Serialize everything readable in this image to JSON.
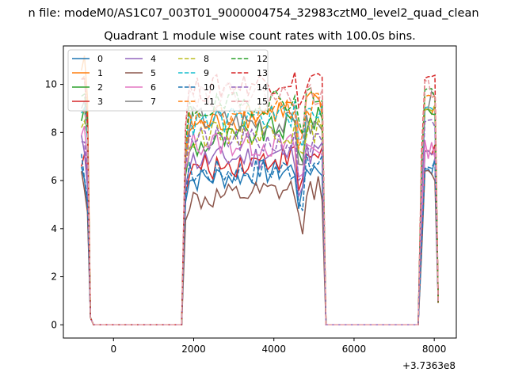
{
  "chart_data": {
    "type": "line",
    "suptitle": "n file: modeM0/AS1C07_003T01_9000004754_32983cztM0_level2_quad_clean",
    "title": "Quadrant 1 module wise count rates with 100.0s bins.",
    "xlabel": "",
    "ylabel": "",
    "x_offset_label": "+3.7363e8",
    "xlim": [
      -1250,
      8550
    ],
    "ylim": [
      -0.55,
      11.6
    ],
    "xticks": [
      0,
      2000,
      4000,
      6000,
      8000
    ],
    "xtick_labels": [
      "0",
      "2000",
      "4000",
      "6000",
      "8000"
    ],
    "yticks": [
      0,
      2,
      4,
      6,
      8,
      10
    ],
    "ytick_labels": [
      "0",
      "2",
      "4",
      "6",
      "8",
      "10"
    ],
    "grid": false,
    "legend": {
      "location": "upper-left",
      "columns": 4
    },
    "segments": [
      {
        "x_start": -800,
        "x_end": -500,
        "n": 4
      },
      {
        "x_start": -500,
        "x_end": 1700,
        "n": 23
      },
      {
        "x_start": 1700,
        "x_end": 5300,
        "n": 37
      },
      {
        "x_start": 5300,
        "x_end": 7600,
        "n": 24
      },
      {
        "x_start": 7600,
        "x_end": 8100,
        "n": 6
      }
    ],
    "series": [
      {
        "name": "0",
        "color": "#1f77b4",
        "dash": "solid",
        "levels": [
          6.5,
          6.0,
          6.6,
          6.6
        ]
      },
      {
        "name": "1",
        "color": "#ff7f0e",
        "dash": "solid",
        "levels": [
          10.7,
          8.1,
          9.3,
          9.0
        ]
      },
      {
        "name": "2",
        "color": "#2ca02c",
        "dash": "solid",
        "levels": [
          8.8,
          7.3,
          8.6,
          8.9
        ]
      },
      {
        "name": "3",
        "color": "#d62728",
        "dash": "solid",
        "levels": [
          7.1,
          6.4,
          7.2,
          7.1
        ]
      },
      {
        "name": "4",
        "color": "#9467bd",
        "dash": "solid",
        "levels": [
          7.4,
          6.8,
          7.2,
          7.0
        ]
      },
      {
        "name": "5",
        "color": "#8c564b",
        "dash": "solid",
        "levels": [
          6.1,
          5.1,
          5.7,
          6.1
        ]
      },
      {
        "name": "6",
        "color": "#e377c2",
        "dash": "solid",
        "levels": [
          7.8,
          7.6,
          7.4,
          7.3
        ]
      },
      {
        "name": "7",
        "color": "#7f7f7f",
        "dash": "solid",
        "levels": [
          9.1,
          8.6,
          8.2,
          9.3
        ]
      },
      {
        "name": "8",
        "color": "#bcbd22",
        "dash": "dashed",
        "levels": [
          8.5,
          7.9,
          8.1,
          9.2
        ]
      },
      {
        "name": "9",
        "color": "#17becf",
        "dash": "dashed",
        "levels": [
          9.3,
          8.3,
          8.9,
          9.2
        ]
      },
      {
        "name": "10",
        "color": "#1f77b4",
        "dash": "dashed",
        "levels": [
          6.6,
          6.3,
          6.6,
          6.6
        ]
      },
      {
        "name": "11",
        "color": "#ff7f0e",
        "dash": "dashed",
        "levels": [
          9.9,
          8.4,
          9.2,
          9.5
        ]
      },
      {
        "name": "12",
        "color": "#2ca02c",
        "dash": "dashed",
        "levels": [
          9.4,
          8.9,
          9.6,
          9.7
        ]
      },
      {
        "name": "13",
        "color": "#d62728",
        "dash": "dashed",
        "levels": [
          10.3,
          9.7,
          10.4,
          10.1
        ]
      },
      {
        "name": "14",
        "color": "#9467bd",
        "dash": "dashed",
        "levels": [
          7.9,
          7.7,
          7.5,
          8.2
        ]
      },
      {
        "name": "15",
        "color": "#e69aa0",
        "dash": "dashed",
        "levels": [
          9.4,
          9.6,
          9.5,
          9.8
        ]
      }
    ]
  }
}
